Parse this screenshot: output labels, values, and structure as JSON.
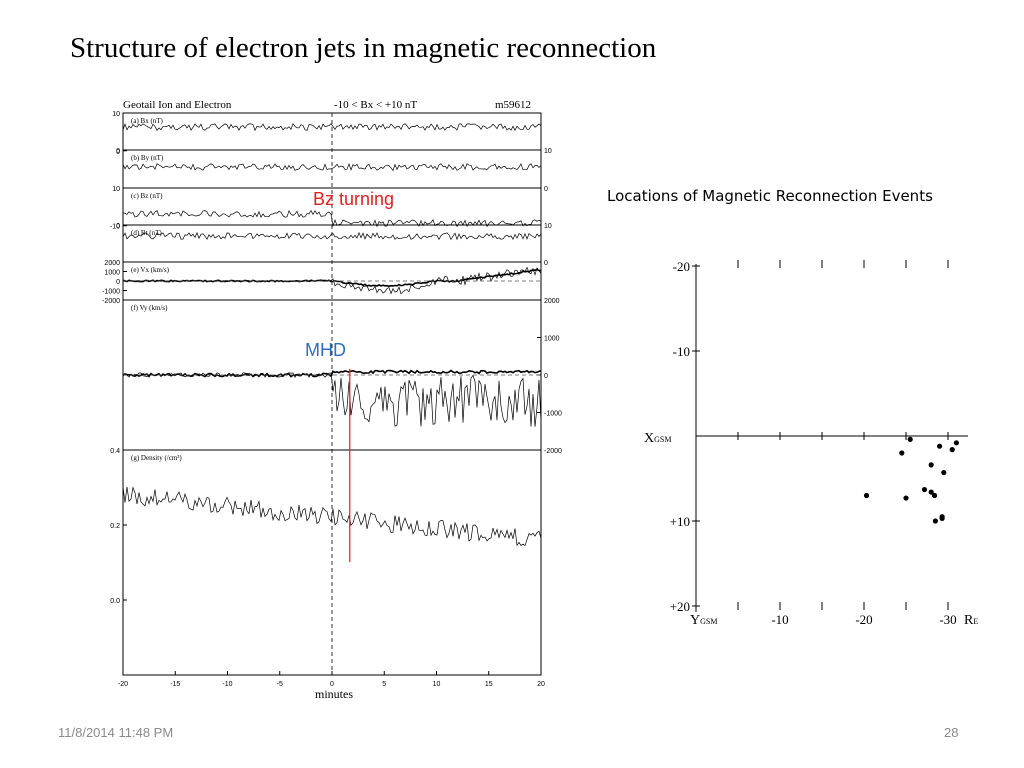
{
  "slide": {
    "title": "Structure of electron jets  in magnetic reconnection",
    "footer_date": "11/8/2014 11:48 PM",
    "page_number": "28"
  },
  "annotations": {
    "bz_turning": "Bz turning",
    "mhd": "MHD",
    "bz_color": "#e02020",
    "mhd_color": "#2a6fc0",
    "marker_color": "#e02020"
  },
  "chart_data": [
    {
      "type": "line",
      "header": {
        "left": "Geotail   Ion and Electron",
        "center": "-10 < Bx < +10 nT",
        "right": "m59612"
      },
      "xlabel": "minutes",
      "x_ticks": [
        "-20",
        "-15",
        "-10",
        "-5",
        "0",
        "5",
        "10",
        "15",
        "20"
      ],
      "xlim": [
        -20,
        20
      ],
      "panels": [
        {
          "label": "(a) Bx (nT)",
          "left_ticks": [
            "10",
            "0"
          ],
          "right_ticks": [],
          "baseline_from_top": 0.5,
          "level": 0.38
        },
        {
          "label": "(b) By (nT)",
          "left_ticks": [
            "0"
          ],
          "right_ticks": [
            "10",
            "0"
          ],
          "baseline_from_top": 0.5,
          "level": 0.45
        },
        {
          "label": "(c) Bz (nT)",
          "left_ticks": [
            "10",
            "0"
          ],
          "right_ticks": [],
          "baseline_from_top": 0.5,
          "level": 0.7
        },
        {
          "label": "(d) Bt (nT)",
          "left_ticks": [
            "-10"
          ],
          "right_ticks": [
            "10",
            "0"
          ],
          "baseline_from_top": 0.5,
          "level": 0.3
        },
        {
          "label": "(e) Vx (km/s)",
          "left_ticks": [
            "2000",
            "1000",
            "0",
            "-1000",
            "-2000"
          ],
          "right_ticks": [],
          "baseline_from_top": 0.5,
          "level": 0.5
        },
        {
          "label": "(f) Vy (km/s)",
          "left_ticks": [],
          "right_ticks": [
            "2000",
            "1000",
            "0",
            "-1000",
            "-2000"
          ],
          "baseline_from_top": 0.5,
          "level": 0.5
        },
        {
          "label": "(g) Density (/cm³)",
          "left_ticks": [
            "0.4",
            "0.2",
            "0.0"
          ],
          "right_ticks": [],
          "baseline_from_top": 0.5,
          "level": 0.5
        }
      ],
      "bz_turning_minute": 0,
      "mhd_minute": 1.7
    },
    {
      "type": "scatter",
      "title": "Locations of Magnetic Reconnection Events",
      "x_axis_label": {
        "main": "Y",
        "sub": "GSM"
      },
      "y_axis_label": {
        "main": "X",
        "sub": "GSM"
      },
      "unit": {
        "main": "R",
        "sub": "E"
      },
      "x_ticks": [
        "-10",
        "-20",
        "-30"
      ],
      "y_ticks": [
        "-20",
        "-10",
        "+10",
        "+20"
      ],
      "xlim": [
        0,
        -32
      ],
      "ylim": [
        -20,
        20
      ],
      "points": [
        {
          "x": -20.3,
          "y": 7.0
        },
        {
          "x": -24.5,
          "y": 2.0
        },
        {
          "x": -25.0,
          "y": 7.3
        },
        {
          "x": -25.5,
          "y": 0.4
        },
        {
          "x": -27.2,
          "y": 6.3
        },
        {
          "x": -28.0,
          "y": 6.6
        },
        {
          "x": -28.0,
          "y": 3.4
        },
        {
          "x": -28.4,
          "y": 7.0
        },
        {
          "x": -28.5,
          "y": 10.0
        },
        {
          "x": -29.0,
          "y": 1.2
        },
        {
          "x": -29.3,
          "y": 9.5
        },
        {
          "x": -29.3,
          "y": 9.7
        },
        {
          "x": -29.5,
          "y": 4.3
        },
        {
          "x": -30.5,
          "y": 1.6
        },
        {
          "x": -31.0,
          "y": 0.8
        }
      ]
    }
  ]
}
